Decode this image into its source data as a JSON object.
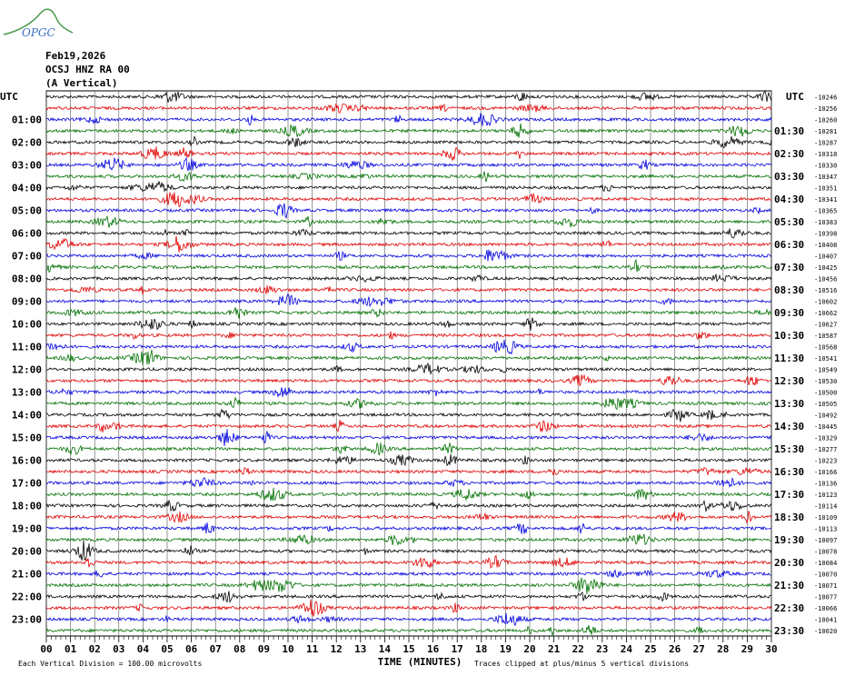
{
  "header": {
    "logo": "OPGC",
    "date": "Feb19,2026",
    "station": "OCSJ HNZ RA 00",
    "component": "(A Vertical)"
  },
  "left_axis": {
    "title": "UTC",
    "labels": [
      "01:00",
      "02:00",
      "03:00",
      "04:00",
      "05:00",
      "06:00",
      "07:00",
      "08:00",
      "09:00",
      "10:00",
      "11:00",
      "12:00",
      "13:00",
      "14:00",
      "15:00",
      "16:00",
      "17:00",
      "18:00",
      "19:00",
      "20:00",
      "21:00",
      "22:00",
      "23:00"
    ]
  },
  "right_axis": {
    "title": "UTC",
    "labels": [
      "01:30",
      "02:30",
      "03:30",
      "04:30",
      "05:30",
      "06:30",
      "07:30",
      "08:30",
      "09:30",
      "10:30",
      "11:30",
      "12:30",
      "13:30",
      "14:30",
      "15:30",
      "16:30",
      "17:30",
      "18:30",
      "19:30",
      "20:30",
      "21:30",
      "22:30",
      "23:30"
    ]
  },
  "offsets": [
    -10246,
    -10256,
    -10260,
    -10281,
    -10287,
    -10318,
    -10330,
    -10347,
    -10351,
    -10341,
    -10365,
    -10383,
    -10398,
    -10408,
    -10407,
    -10425,
    -10456,
    -10516,
    -10602,
    -10662,
    -10627,
    -10587,
    -10568,
    -10541,
    -10549,
    -10530,
    -10500,
    -10505,
    -10492,
    -10445,
    -10329,
    -10277,
    -10223,
    -10166,
    -10136,
    -10123,
    -10114,
    -10109,
    -10113,
    -10097,
    -10078,
    -10084,
    -10070,
    -10071,
    -10077,
    -10066,
    -10041,
    -10020
  ],
  "trace_colors": [
    "#000000",
    "#e00000",
    "#0000e0",
    "#007000"
  ],
  "x_axis": {
    "ticks": [
      "00",
      "01",
      "02",
      "03",
      "04",
      "05",
      "06",
      "07",
      "08",
      "09",
      "10",
      "11",
      "12",
      "13",
      "14",
      "15",
      "16",
      "17",
      "18",
      "19",
      "20",
      "21",
      "22",
      "23",
      "24",
      "25",
      "26",
      "27",
      "28",
      "29",
      "30"
    ],
    "title": "TIME (MINUTES)"
  },
  "footer": {
    "scale": "Each Vertical Division =  100.00 microvolts",
    "clip": "Traces clipped at plus/minus 5 vertical divisions"
  }
}
